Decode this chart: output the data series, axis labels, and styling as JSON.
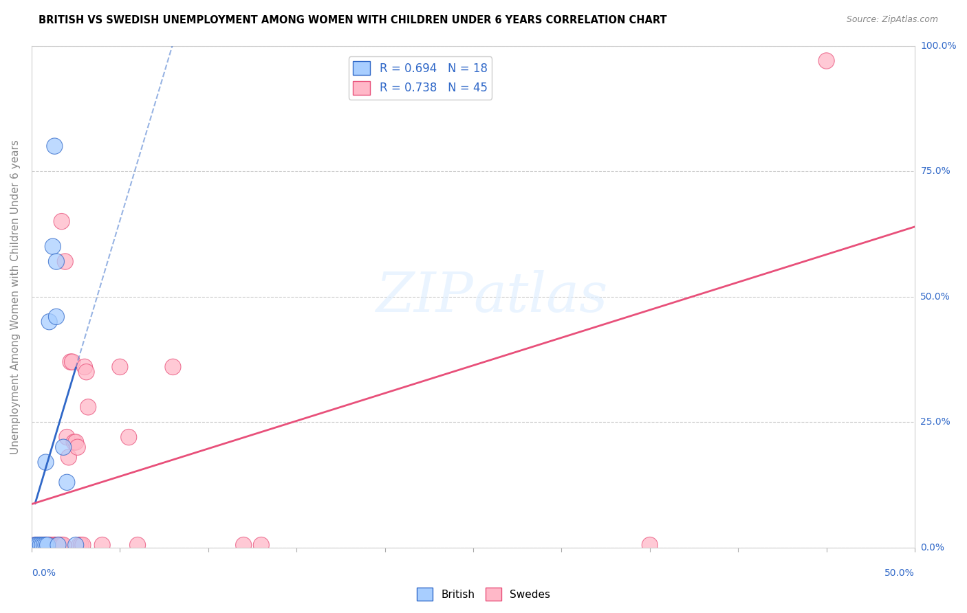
{
  "title": "BRITISH VS SWEDISH UNEMPLOYMENT AMONG WOMEN WITH CHILDREN UNDER 6 YEARS CORRELATION CHART",
  "source": "Source: ZipAtlas.com",
  "ylabel": "Unemployment Among Women with Children Under 6 years",
  "ytick_labels": [
    "0.0%",
    "25.0%",
    "50.0%",
    "75.0%",
    "100.0%"
  ],
  "ytick_vals": [
    0.0,
    0.25,
    0.5,
    0.75,
    1.0
  ],
  "watermark": "ZIPatlas",
  "british_R": 0.694,
  "british_N": 18,
  "swedes_R": 0.738,
  "swedes_N": 45,
  "british_color": "#A8CEFF",
  "swedes_color": "#FFB8C8",
  "british_line_color": "#3068C8",
  "swedes_line_color": "#E8507A",
  "british_points": [
    [
      0.002,
      0.005
    ],
    [
      0.004,
      0.005
    ],
    [
      0.005,
      0.005
    ],
    [
      0.006,
      0.005
    ],
    [
      0.007,
      0.005
    ],
    [
      0.008,
      0.005
    ],
    [
      0.008,
      0.16
    ],
    [
      0.009,
      0.005
    ],
    [
      0.01,
      0.005
    ],
    [
      0.012,
      0.47
    ],
    [
      0.013,
      0.005
    ],
    [
      0.014,
      0.58
    ],
    [
      0.015,
      0.005
    ],
    [
      0.016,
      0.44
    ],
    [
      0.017,
      0.17
    ],
    [
      0.018,
      0.005
    ],
    [
      0.02,
      0.13
    ],
    [
      0.025,
      0.005
    ]
  ],
  "swedes_points": [
    [
      0.002,
      0.005
    ],
    [
      0.003,
      0.005
    ],
    [
      0.004,
      0.005
    ],
    [
      0.005,
      0.005
    ],
    [
      0.006,
      0.005
    ],
    [
      0.007,
      0.005
    ],
    [
      0.007,
      0.005
    ],
    [
      0.008,
      0.005
    ],
    [
      0.009,
      0.005
    ],
    [
      0.01,
      0.005
    ],
    [
      0.01,
      0.005
    ],
    [
      0.011,
      0.005
    ],
    [
      0.011,
      0.005
    ],
    [
      0.012,
      0.005
    ],
    [
      0.012,
      0.005
    ],
    [
      0.013,
      0.005
    ],
    [
      0.014,
      0.005
    ],
    [
      0.014,
      0.005
    ],
    [
      0.015,
      0.005
    ],
    [
      0.016,
      0.005
    ],
    [
      0.017,
      0.005
    ],
    [
      0.017,
      0.21
    ],
    [
      0.018,
      0.005
    ],
    [
      0.019,
      0.22
    ],
    [
      0.02,
      0.005
    ],
    [
      0.02,
      0.17
    ],
    [
      0.021,
      0.18
    ],
    [
      0.022,
      0.005
    ],
    [
      0.023,
      0.005
    ],
    [
      0.024,
      0.005
    ],
    [
      0.025,
      0.005
    ],
    [
      0.026,
      0.18
    ],
    [
      0.027,
      0.005
    ],
    [
      0.028,
      0.19
    ],
    [
      0.029,
      0.34
    ],
    [
      0.03,
      0.005
    ],
    [
      0.031,
      0.38
    ],
    [
      0.035,
      0.005
    ],
    [
      0.036,
      0.36
    ],
    [
      0.04,
      0.005
    ],
    [
      0.05,
      0.005
    ],
    [
      0.07,
      0.22
    ],
    [
      0.08,
      0.36
    ],
    [
      0.12,
      0.005
    ],
    [
      0.45,
      0.97
    ]
  ],
  "xlim": [
    0,
    0.5
  ],
  "ylim": [
    0,
    1.0
  ]
}
